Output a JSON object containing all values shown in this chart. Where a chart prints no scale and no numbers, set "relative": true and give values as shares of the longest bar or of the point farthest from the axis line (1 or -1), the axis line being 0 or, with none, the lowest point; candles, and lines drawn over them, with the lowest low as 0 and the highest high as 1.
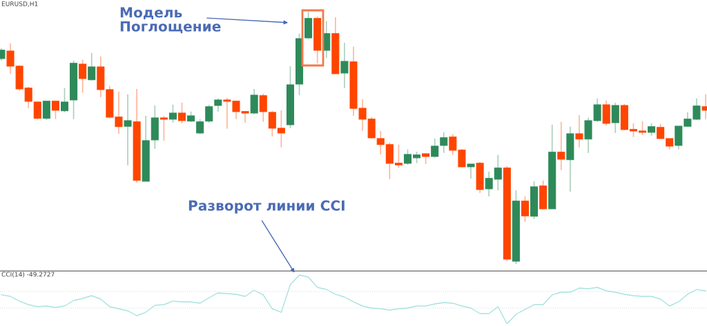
{
  "chart_data": [
    {
      "type": "candlestick",
      "title": "EURUSD,H1",
      "relative": true,
      "categories": [
        null,
        null,
        null,
        null,
        null,
        null,
        null,
        null,
        null,
        null,
        null,
        null,
        null,
        null,
        null,
        null,
        null,
        null,
        null,
        null,
        null,
        null,
        null,
        null,
        null,
        null,
        null,
        null,
        null,
        null,
        null,
        null,
        null,
        null,
        null,
        null,
        null,
        null,
        null,
        null,
        null,
        null,
        null,
        null,
        null,
        null,
        null,
        null,
        null,
        null,
        null,
        null,
        null,
        null,
        null,
        null,
        null,
        null,
        null,
        null,
        null,
        null,
        null,
        null,
        null,
        null,
        null,
        null,
        null,
        null,
        null,
        null,
        null,
        null,
        null,
        null,
        null,
        null,
        null
      ],
      "ohlc": [
        [
          0.814,
          0.855,
          0.806,
          0.847
        ],
        [
          0.844,
          0.874,
          0.754,
          0.784
        ],
        [
          0.784,
          0.787,
          0.686,
          0.694
        ],
        [
          0.697,
          0.702,
          0.617,
          0.645
        ],
        [
          0.642,
          0.642,
          0.574,
          0.577
        ],
        [
          0.577,
          0.645,
          0.571,
          0.645
        ],
        [
          0.645,
          0.645,
          0.574,
          0.609
        ],
        [
          0.607,
          0.697,
          0.601,
          0.642
        ],
        [
          0.65,
          0.806,
          0.574,
          0.795
        ],
        [
          0.792,
          0.809,
          0.678,
          0.735
        ],
        [
          0.73,
          0.836,
          0.727,
          0.781
        ],
        [
          0.781,
          0.822,
          0.661,
          0.691
        ],
        [
          0.691,
          0.705,
          0.577,
          0.582
        ],
        [
          0.582,
          0.683,
          0.516,
          0.544
        ],
        [
          0.546,
          0.672,
          0.391,
          0.568
        ],
        [
          0.563,
          0.694,
          0.322,
          0.331
        ],
        [
          0.328,
          0.587,
          0.328,
          0.489
        ],
        [
          0.492,
          0.628,
          0.456,
          0.579
        ],
        [
          0.579,
          0.587,
          0.489,
          0.574
        ],
        [
          0.574,
          0.631,
          0.56,
          0.598
        ],
        [
          0.598,
          0.639,
          0.557,
          0.568
        ],
        [
          0.566,
          0.604,
          0.563,
          0.587
        ],
        [
          0.519,
          0.574,
          0.514,
          0.563
        ],
        [
          0.566,
          0.631,
          0.56,
          0.623
        ],
        [
          0.628,
          0.656,
          0.604,
          0.65
        ],
        [
          0.65,
          0.658,
          0.536,
          0.645
        ],
        [
          0.645,
          0.645,
          0.574,
          0.604
        ],
        [
          0.604,
          0.604,
          0.56,
          0.598
        ],
        [
          0.598,
          0.694,
          0.593,
          0.669
        ],
        [
          0.667,
          0.675,
          0.563,
          0.604
        ],
        [
          0.601,
          0.607,
          0.505,
          0.538
        ],
        [
          0.538,
          0.609,
          0.462,
          0.519
        ],
        [
          0.552,
          0.784,
          0.538,
          0.71
        ],
        [
          0.713,
          0.913,
          0.669,
          0.893
        ],
        [
          0.896,
          1.0,
          0.891,
          0.973
        ],
        [
          0.973,
          0.981,
          0.795,
          0.847
        ],
        [
          0.847,
          0.962,
          0.817,
          0.913
        ],
        [
          0.913,
          0.978,
          0.754,
          0.754
        ],
        [
          0.757,
          0.877,
          0.697,
          0.803
        ],
        [
          0.801,
          0.861,
          0.587,
          0.617
        ],
        [
          0.617,
          0.653,
          0.527,
          0.574
        ],
        [
          0.574,
          0.582,
          0.497,
          0.5
        ],
        [
          0.497,
          0.527,
          0.434,
          0.473
        ],
        [
          0.473,
          0.481,
          0.336,
          0.399
        ],
        [
          0.399,
          0.473,
          0.38,
          0.393
        ],
        [
          0.399,
          0.454,
          0.393,
          0.434
        ],
        [
          0.421,
          0.445,
          0.399,
          0.432
        ],
        [
          0.437,
          0.437,
          0.396,
          0.426
        ],
        [
          0.426,
          0.497,
          0.421,
          0.467
        ],
        [
          0.47,
          0.522,
          0.44,
          0.5
        ],
        [
          0.503,
          0.514,
          0.432,
          0.451
        ],
        [
          0.451,
          0.456,
          0.383,
          0.385
        ],
        [
          0.385,
          0.396,
          0.339,
          0.396
        ],
        [
          0.399,
          0.404,
          0.281,
          0.295
        ],
        [
          0.298,
          0.366,
          0.268,
          0.339
        ],
        [
          0.336,
          0.432,
          0.292,
          0.38
        ],
        [
          0.38,
          0.388,
          0.011,
          0.019
        ],
        [
          0.011,
          0.292,
          0.0,
          0.249
        ],
        [
          0.249,
          0.268,
          0.167,
          0.191
        ],
        [
          0.189,
          0.328,
          0.178,
          0.306
        ],
        [
          0.309,
          0.331,
          0.216,
          0.219
        ],
        [
          0.219,
          0.552,
          0.219,
          0.443
        ],
        [
          0.443,
          0.563,
          0.372,
          0.415
        ],
        [
          0.413,
          0.544,
          0.287,
          0.516
        ],
        [
          0.516,
          0.59,
          0.462,
          0.495
        ],
        [
          0.495,
          0.579,
          0.44,
          0.568
        ],
        [
          0.568,
          0.656,
          0.563,
          0.631
        ],
        [
          0.631,
          0.648,
          0.549,
          0.557
        ],
        [
          0.56,
          0.639,
          0.519,
          0.628
        ],
        [
          0.628,
          0.634,
          0.53,
          0.533
        ],
        [
          0.533,
          0.557,
          0.503,
          0.527
        ],
        [
          0.527,
          0.566,
          0.511,
          0.522
        ],
        [
          0.522,
          0.557,
          0.508,
          0.544
        ],
        [
          0.541,
          0.555,
          0.495,
          0.497
        ],
        [
          0.497,
          0.497,
          0.454,
          0.467
        ],
        [
          0.47,
          0.546,
          0.454,
          0.546
        ],
        [
          0.546,
          0.601,
          0.544,
          0.574
        ],
        [
          0.574,
          0.656,
          0.571,
          0.626
        ],
        [
          0.623,
          0.672,
          0.574,
          0.609
        ]
      ],
      "colors": [
        "#2e8a5a",
        "#ff4500",
        "#ff4500",
        "#ff4500",
        "#ff4500",
        "#2e8a5a",
        "#ff4500",
        "#2e8a5a",
        "#2e8a5a",
        "#ff4500",
        "#2e8a5a",
        "#ff4500",
        "#ff4500",
        "#ff4500",
        "#2e8a5a",
        "#ff4500",
        "#2e8a5a",
        "#2e8a5a",
        "#ff4500",
        "#2e8a5a",
        "#ff4500",
        "#2e8a5a",
        "#2e8a5a",
        "#2e8a5a",
        "#2e8a5a",
        "#ff4500",
        "#ff4500",
        "#ff4500",
        "#2e8a5a",
        "#ff4500",
        "#ff4500",
        "#ff4500",
        "#2e8a5a",
        "#2e8a5a",
        "#2e8a5a",
        "#ff4500",
        "#2e8a5a",
        "#ff4500",
        "#2e8a5a",
        "#ff4500",
        "#ff4500",
        "#ff4500",
        "#ff4500",
        "#ff4500",
        "#ff4500",
        "#2e8a5a",
        "#2e8a5a",
        "#ff4500",
        "#2e8a5a",
        "#2e8a5a",
        "#ff4500",
        "#ff4500",
        "#2e8a5a",
        "#ff4500",
        "#2e8a5a",
        "#2e8a5a",
        "#ff4500",
        "#2e8a5a",
        "#ff4500",
        "#2e8a5a",
        "#ff4500",
        "#2e8a5a",
        "#ff4500",
        "#2e8a5a",
        "#ff4500",
        "#2e8a5a",
        "#2e8a5a",
        "#ff4500",
        "#2e8a5a",
        "#ff4500",
        "#ff4500",
        "#ff4500",
        "#2e8a5a",
        "#ff4500",
        "#ff4500",
        "#2e8a5a",
        "#2e8a5a",
        "#2e8a5a",
        "#ff4500"
      ],
      "annotations": [
        "Модель\nПоглощение",
        "Разворот линии CCI"
      ]
    },
    {
      "type": "line",
      "title": "CCI(14) -49.2727",
      "relative": true,
      "color": "#a8e3df",
      "categories": [
        null,
        null,
        null,
        null,
        null,
        null,
        null,
        null,
        null,
        null,
        null,
        null,
        null,
        null,
        null,
        null,
        null,
        null,
        null,
        null,
        null,
        null,
        null,
        null,
        null,
        null,
        null,
        null,
        null,
        null,
        null,
        null,
        null,
        null,
        null,
        null,
        null,
        null,
        null,
        null,
        null,
        null,
        null,
        null,
        null,
        null,
        null,
        null,
        null,
        null,
        null,
        null,
        null,
        null,
        null,
        null,
        null,
        null,
        null,
        null,
        null,
        null,
        null,
        null,
        null,
        null,
        null,
        null,
        null,
        null,
        null,
        null,
        null,
        null,
        null,
        null,
        null,
        null,
        null
      ],
      "values": [
        0.596,
        0.563,
        0.465,
        0.394,
        0.352,
        0.366,
        0.338,
        0.366,
        0.479,
        0.521,
        0.577,
        0.507,
        0.352,
        0.31,
        0.268,
        0.169,
        0.239,
        0.38,
        0.394,
        0.465,
        0.451,
        0.451,
        0.423,
        0.535,
        0.634,
        0.62,
        0.606,
        0.563,
        0.69,
        0.592,
        0.31,
        0.239,
        0.803,
        1.0,
        0.958,
        0.746,
        0.704,
        0.606,
        0.549,
        0.451,
        0.366,
        0.324,
        0.31,
        0.282,
        0.31,
        0.324,
        0.366,
        0.366,
        0.408,
        0.437,
        0.423,
        0.366,
        0.324,
        0.211,
        0.211,
        0.352,
        0.0,
        0.197,
        0.296,
        0.394,
        0.394,
        0.592,
        0.648,
        0.648,
        0.732,
        0.718,
        0.746,
        0.676,
        0.648,
        0.606,
        0.577,
        0.563,
        0.563,
        0.507,
        0.366,
        0.451,
        0.606,
        0.704,
        0.676
      ],
      "ref_lines": [
        {
          "axis": "y",
          "value": 0.662,
          "color": "#d9d9d9",
          "line_style": "dotted"
        },
        {
          "axis": "y",
          "value": 0.324,
          "color": "#d9d9d9",
          "line_style": "dotted"
        }
      ]
    }
  ]
}
